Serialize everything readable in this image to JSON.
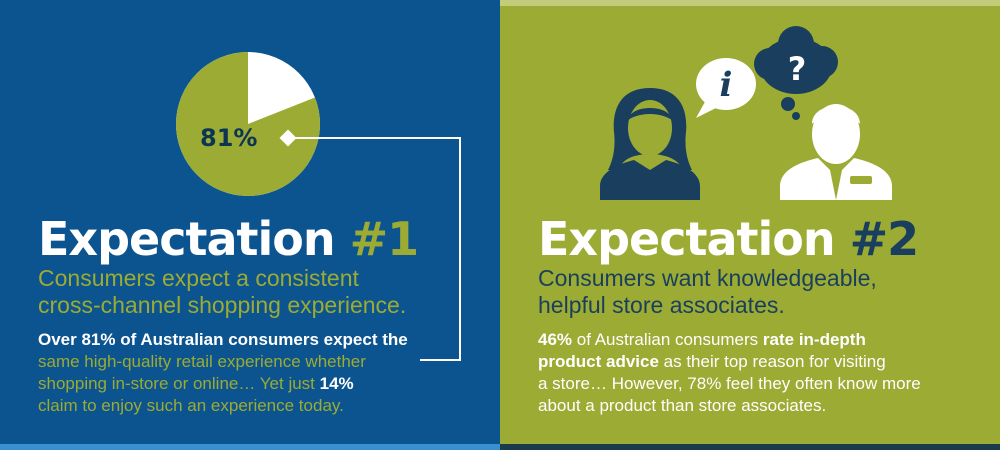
{
  "expectation1": {
    "pie": {
      "label": "81%",
      "percent": 81,
      "fill_color": "#9bab33",
      "rest_color": "#ffffff"
    },
    "heading": "Expectation ",
    "heading_number": "#1",
    "subhead_line1": "Consumers expect a consistent",
    "subhead_line2": "cross-channel shopping experience.",
    "body": {
      "l1_bold": "Over 81%",
      "l1_rest": " of Australian consumers expect the",
      "l2": "same high-quality retail experience whether",
      "l3_start": "shopping in-store or online… Yet just ",
      "l3_bold": "14%",
      "l4": "claim to enjoy such an experience today."
    }
  },
  "expectation2": {
    "heading": "Expectation ",
    "heading_number": "#2",
    "subhead_line1": "Consumers want knowledgeable,",
    "subhead_line2": "helpful store associates.",
    "bubble_info_glyph": "i",
    "bubble_question_glyph": "?",
    "body": {
      "l1_bold_start": "46%",
      "l1_mid": " of Australian consumers ",
      "l1_bold_end": "rate in-depth",
      "l2_bold": "product advice",
      "l2_rest": " as their top reason for visiting",
      "l3": "a store… However, 78% feel they often know more",
      "l4": "about a product than store associates."
    }
  },
  "colors": {
    "left_bg": "#0c5490",
    "right_bg": "#9bab33",
    "dark_navy": "#1a3f5e"
  }
}
